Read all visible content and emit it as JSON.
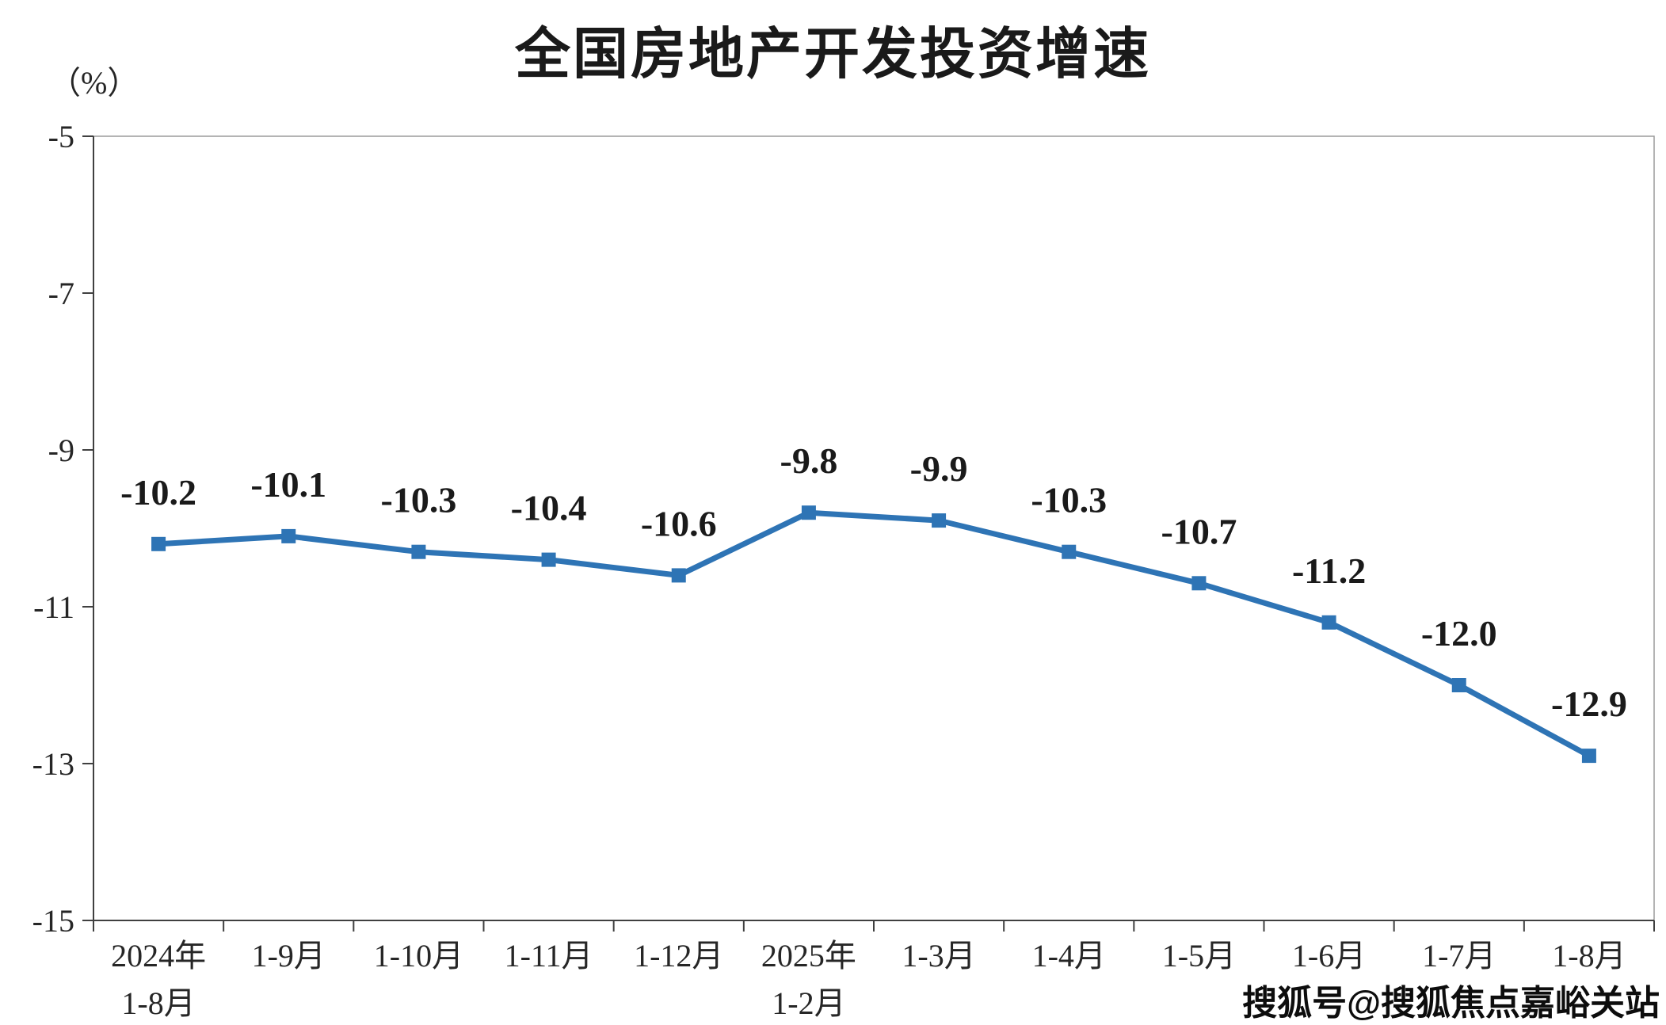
{
  "title": "全国房地产开发投资增速",
  "y_axis_unit": "（%）",
  "watermark": "搜狐号@搜狐焦点嘉峪关站",
  "chart_data": {
    "type": "line",
    "title": "全国房地产开发投资增速",
    "ylabel": "（%）",
    "categories": [
      [
        "2024年",
        "1-8月"
      ],
      [
        "1-9月"
      ],
      [
        "1-10月"
      ],
      [
        "1-11月"
      ],
      [
        "1-12月"
      ],
      [
        "2025年",
        "1-2月"
      ],
      [
        "1-3月"
      ],
      [
        "1-4月"
      ],
      [
        "1-5月"
      ],
      [
        "1-6月"
      ],
      [
        "1-7月"
      ],
      [
        "1-8月"
      ]
    ],
    "series": [
      {
        "name": "全国房地产开发投资增速",
        "values": [
          -10.2,
          -10.1,
          -10.3,
          -10.4,
          -10.6,
          -9.8,
          -9.9,
          -10.3,
          -10.7,
          -11.2,
          -12.0,
          -12.9
        ]
      }
    ],
    "data_labels": [
      "-10.2",
      "-10.1",
      "-10.3",
      "-10.4",
      "-10.6",
      "-9.8",
      "-9.9",
      "-10.3",
      "-10.7",
      "-11.2",
      "-12.0",
      "-12.9"
    ],
    "ylim": [
      -15,
      -5
    ],
    "yticks": [
      -5,
      -7,
      -9,
      -11,
      -13,
      -15
    ],
    "grid": false,
    "legend_position": "none",
    "line_color": "#2E74B5",
    "marker": "square"
  }
}
